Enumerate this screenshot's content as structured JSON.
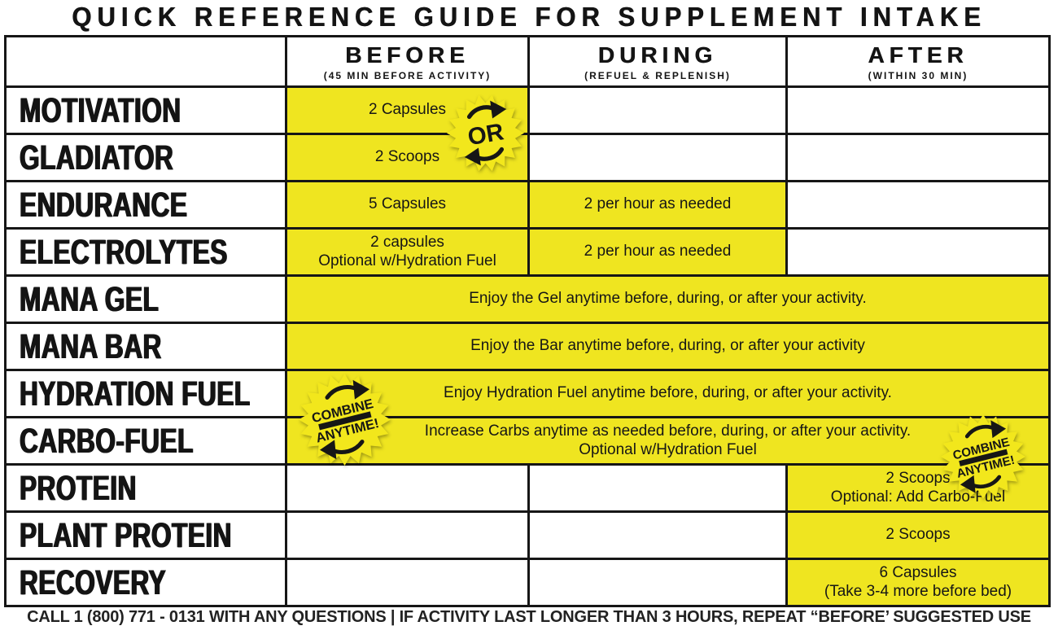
{
  "title": "QUICK REFERENCE GUIDE FOR SUPPLEMENT INTAKE",
  "columns": [
    {
      "label": "BEFORE",
      "sub": "(45 MIN BEFORE ACTIVITY)"
    },
    {
      "label": "DURING",
      "sub": "(REFUEL & REPLENISH)"
    },
    {
      "label": "AFTER",
      "sub": "(WITHIN 30 MIN)"
    }
  ],
  "rows": [
    {
      "label": "MOTIVATION",
      "before": {
        "l1": "2 Capsules"
      }
    },
    {
      "label": "GLADIATOR",
      "before": {
        "l1": "2 Scoops"
      }
    },
    {
      "label": "ENDURANCE",
      "before": {
        "l1": "5 Capsules"
      },
      "during": {
        "l1": "2 per hour as needed"
      }
    },
    {
      "label": "ELECTROLYTES",
      "before": {
        "l1": "2 capsules",
        "l2": "Optional w/Hydration Fuel"
      },
      "during": {
        "l1": "2 per hour as needed"
      }
    },
    {
      "label": "MANA GEL",
      "span": {
        "l1": "Enjoy the Gel anytime before, during, or after your activity."
      }
    },
    {
      "label": "MANA BAR",
      "span": {
        "l1": "Enjoy the Bar anytime before, during, or after your activity"
      }
    },
    {
      "label": "HYDRATION FUEL",
      "span": {
        "l1": "Enjoy Hydration Fuel anytime before, during, or after your activity."
      }
    },
    {
      "label": "CARBO-FUEL",
      "span": {
        "l1": "Increase Carbs anytime as needed before, during, or after your activity.",
        "l2": "Optional w/Hydration Fuel"
      }
    },
    {
      "label": "PROTEIN",
      "after": {
        "l1": "2 Scoops",
        "l2": "Optional: Add Carbo-Fuel"
      }
    },
    {
      "label": "PLANT PROTEIN",
      "after": {
        "l1": "2 Scoops"
      }
    },
    {
      "label": "RECOVERY",
      "after": {
        "l1": "6 Capsules",
        "l2": "(Take 3-4 more before bed)"
      }
    }
  ],
  "badges": {
    "or": {
      "label": "OR"
    },
    "combine": {
      "top": "COMBINE",
      "bottom": "ANYTIME!"
    }
  },
  "footer": "CALL 1 (800) 771 - 0131 WITH ANY QUESTIONS | IF ACTIVITY LAST LONGER THAN 3 HOURS, REPEAT “BEFORE’ SUGGESTED USE",
  "colors": {
    "highlight_yellow": "#efe520",
    "badge_yellow": "#f2e71c",
    "line_black": "#161616",
    "text_black": "#1a1a1a"
  }
}
